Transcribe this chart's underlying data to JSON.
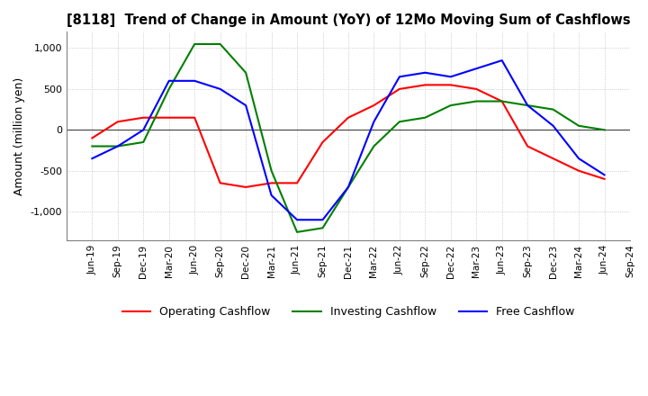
{
  "title": "[8118]  Trend of Change in Amount (YoY) of 12Mo Moving Sum of Cashflows",
  "ylabel": "Amount (million yen)",
  "x_labels": [
    "Jun-19",
    "Sep-19",
    "Dec-19",
    "Mar-20",
    "Jun-20",
    "Sep-20",
    "Dec-20",
    "Mar-21",
    "Jun-21",
    "Sep-21",
    "Dec-21",
    "Mar-22",
    "Jun-22",
    "Sep-22",
    "Dec-22",
    "Mar-23",
    "Jun-23",
    "Sep-23",
    "Dec-23",
    "Mar-24",
    "Jun-24",
    "Sep-24"
  ],
  "operating_cashflow": [
    -100,
    100,
    150,
    150,
    150,
    -650,
    -700,
    -650,
    -650,
    -150,
    150,
    300,
    500,
    550,
    550,
    500,
    350,
    -200,
    -350,
    -500,
    -600,
    null
  ],
  "investing_cashflow": [
    -200,
    -200,
    -150,
    500,
    1050,
    1050,
    700,
    -500,
    -1250,
    -1200,
    -700,
    -200,
    100,
    150,
    300,
    350,
    350,
    300,
    250,
    50,
    0,
    null
  ],
  "free_cashflow": [
    -350,
    -200,
    0,
    600,
    600,
    500,
    300,
    -800,
    -1100,
    -1100,
    -700,
    100,
    650,
    700,
    650,
    750,
    850,
    300,
    50,
    -350,
    -550,
    null
  ],
  "operating_color": "#ff0000",
  "investing_color": "#008000",
  "free_color": "#0000ff",
  "ylim": [
    -1350,
    1200
  ],
  "yticks": [
    -1000,
    -500,
    0,
    500,
    1000
  ],
  "background_color": "#ffffff",
  "grid_color": "#b0b0b0"
}
